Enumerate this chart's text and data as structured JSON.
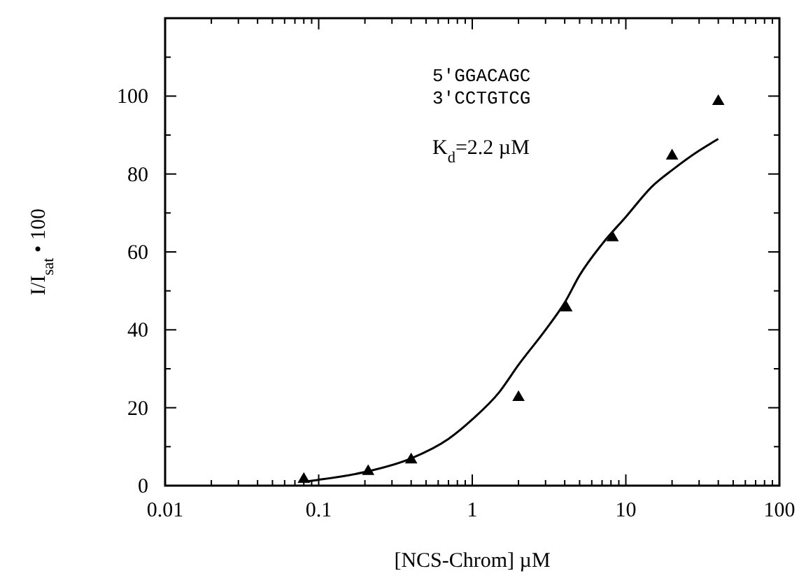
{
  "chart_data": {
    "type": "scatter",
    "xlabel": "[NCS-Chrom] µM",
    "ylabel": "I/I$_{sat}$ • 100",
    "log": "x",
    "grid": false,
    "xlim": [
      0.01,
      100
    ],
    "ylim": [
      0,
      120
    ],
    "xticks": [
      0.01,
      {
        "value": 0.02,
        "label": null
      },
      {
        "value": 0.03,
        "label": null
      },
      {
        "value": 0.04,
        "label": null
      },
      {
        "value": 0.05,
        "label": null
      },
      {
        "value": 0.06,
        "label": null
      },
      {
        "value": 0.07,
        "label": null
      },
      {
        "value": 0.08,
        "label": null
      },
      {
        "value": 0.09,
        "label": null
      },
      0.1,
      {
        "value": 0.2,
        "label": null
      },
      {
        "value": 0.3,
        "label": null
      },
      {
        "value": 0.4,
        "label": null
      },
      {
        "value": 0.5,
        "label": null
      },
      {
        "value": 0.6,
        "label": null
      },
      {
        "value": 0.7,
        "label": null
      },
      {
        "value": 0.8,
        "label": null
      },
      {
        "value": 0.9,
        "label": null
      },
      1,
      {
        "value": 2,
        "label": null
      },
      {
        "value": 3,
        "label": null
      },
      {
        "value": 4,
        "label": null
      },
      {
        "value": 5,
        "label": null
      },
      {
        "value": 6,
        "label": null
      },
      {
        "value": 7,
        "label": null
      },
      {
        "value": 8,
        "label": null
      },
      {
        "value": 9,
        "label": null
      },
      10,
      {
        "value": 20,
        "label": null
      },
      {
        "value": 30,
        "label": null
      },
      {
        "value": 40,
        "label": null
      },
      {
        "value": 50,
        "label": null
      },
      {
        "value": 60,
        "label": null
      },
      {
        "value": 70,
        "label": null
      },
      {
        "value": 80,
        "label": null
      },
      {
        "value": 90,
        "label": null
      },
      100
    ],
    "yticks": [
      0,
      {
        "value": 10,
        "label": null
      },
      20,
      {
        "value": 30,
        "label": null
      },
      40,
      {
        "value": 50,
        "label": null
      },
      60,
      {
        "value": 70,
        "label": null
      },
      80,
      {
        "value": 90,
        "label": null
      },
      100,
      {
        "value": 110,
        "label": null
      },
      {
        "value": 120,
        "label": null
      }
    ],
    "annotations": [
      "5'GGACAGC",
      "3'CCTGTCG",
      "K$_{d}$=2.2 µM"
    ],
    "series": [
      {
        "marker": "triangle",
        "color": "#000000",
        "x": [
          0.08,
          0.21,
          0.4,
          2.0,
          4.1,
          8.2,
          20,
          40
        ],
        "values": [
          2,
          4,
          7,
          23,
          46,
          64,
          85,
          99
        ]
      },
      {
        "type": "line",
        "marker": "none",
        "line_style": "solid",
        "color": "#000000",
        "x": [
          0.08,
          0.1,
          0.2,
          0.4,
          0.7,
          1,
          1.5,
          2,
          3,
          4,
          5,
          7,
          10,
          15,
          20,
          30,
          40
        ],
        "values": [
          1,
          1.5,
          3.5,
          7,
          12,
          17,
          24,
          31,
          40,
          47,
          54,
          62,
          69,
          77,
          81,
          86,
          89
        ]
      }
    ]
  }
}
